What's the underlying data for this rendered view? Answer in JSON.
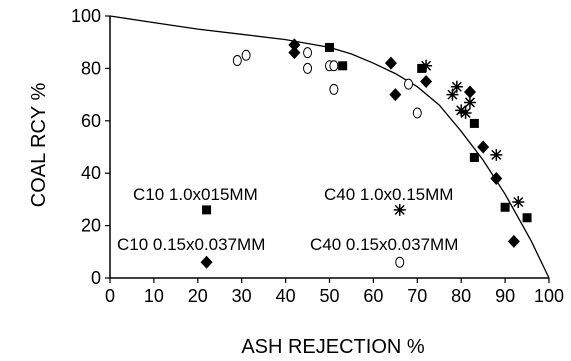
{
  "chart_data": {
    "type": "scatter",
    "title": "",
    "xlabel": "ASH REJECTION %",
    "ylabel": "COAL RCY %",
    "xlim": [
      0,
      100
    ],
    "ylim": [
      0,
      100
    ],
    "xticks": [
      "0",
      "10",
      "20",
      "30",
      "40",
      "50",
      "60",
      "70",
      "80",
      "90",
      "100"
    ],
    "yticks": [
      "0",
      "20",
      "40",
      "60",
      "80",
      "100"
    ],
    "grid": false,
    "series": [
      {
        "name": "C10 1.0x015MM",
        "marker": "square",
        "color": "#000000",
        "x": [
          22,
          50,
          53,
          71,
          83,
          83,
          90,
          95
        ],
        "y": [
          26,
          88,
          81,
          80,
          59,
          46,
          27,
          23
        ]
      },
      {
        "name": "C10 0.15x0.037MM",
        "marker": "diamond",
        "color": "#000000",
        "x": [
          22,
          42,
          42,
          64,
          65,
          72,
          82,
          85,
          88,
          92
        ],
        "y": [
          6,
          89,
          86,
          82,
          70,
          75,
          71,
          50,
          38,
          14
        ]
      },
      {
        "name": "C40 1.0x0.15MM",
        "marker": "asterisk",
        "color": "#000000",
        "x": [
          66,
          72,
          78,
          79,
          80,
          81,
          82,
          88,
          93
        ],
        "y": [
          26,
          81,
          70,
          73,
          64,
          63,
          67,
          47,
          29
        ]
      },
      {
        "name": "C40 0.15x0.037MM",
        "marker": "open-circle",
        "color": "#000000",
        "x": [
          29,
          31,
          45,
          45,
          50,
          51,
          51,
          66,
          68,
          70
        ],
        "y": [
          83,
          85,
          80,
          86,
          81,
          81,
          72,
          6,
          74,
          63
        ]
      }
    ],
    "fit_curve": {
      "x": [
        0,
        10,
        20,
        30,
        40,
        50,
        55,
        60,
        65,
        70,
        75,
        80,
        85,
        90,
        93,
        96,
        98,
        100
      ],
      "y": [
        100,
        97.5,
        95,
        93,
        91,
        88,
        85.5,
        82,
        78,
        73,
        66,
        56,
        45,
        32,
        23,
        14,
        7,
        0
      ]
    },
    "legend": {
      "placement": "inside-lower-left",
      "entries": [
        {
          "label": "C10 1.0x015MM",
          "marker": "square"
        },
        {
          "label": "C10 0.15x0.037MM",
          "marker": "diamond"
        },
        {
          "label": "C40 1.0x0.15MM",
          "marker": "asterisk"
        },
        {
          "label": "C40 0.15x0.037MM",
          "marker": "open-circle"
        }
      ]
    }
  }
}
